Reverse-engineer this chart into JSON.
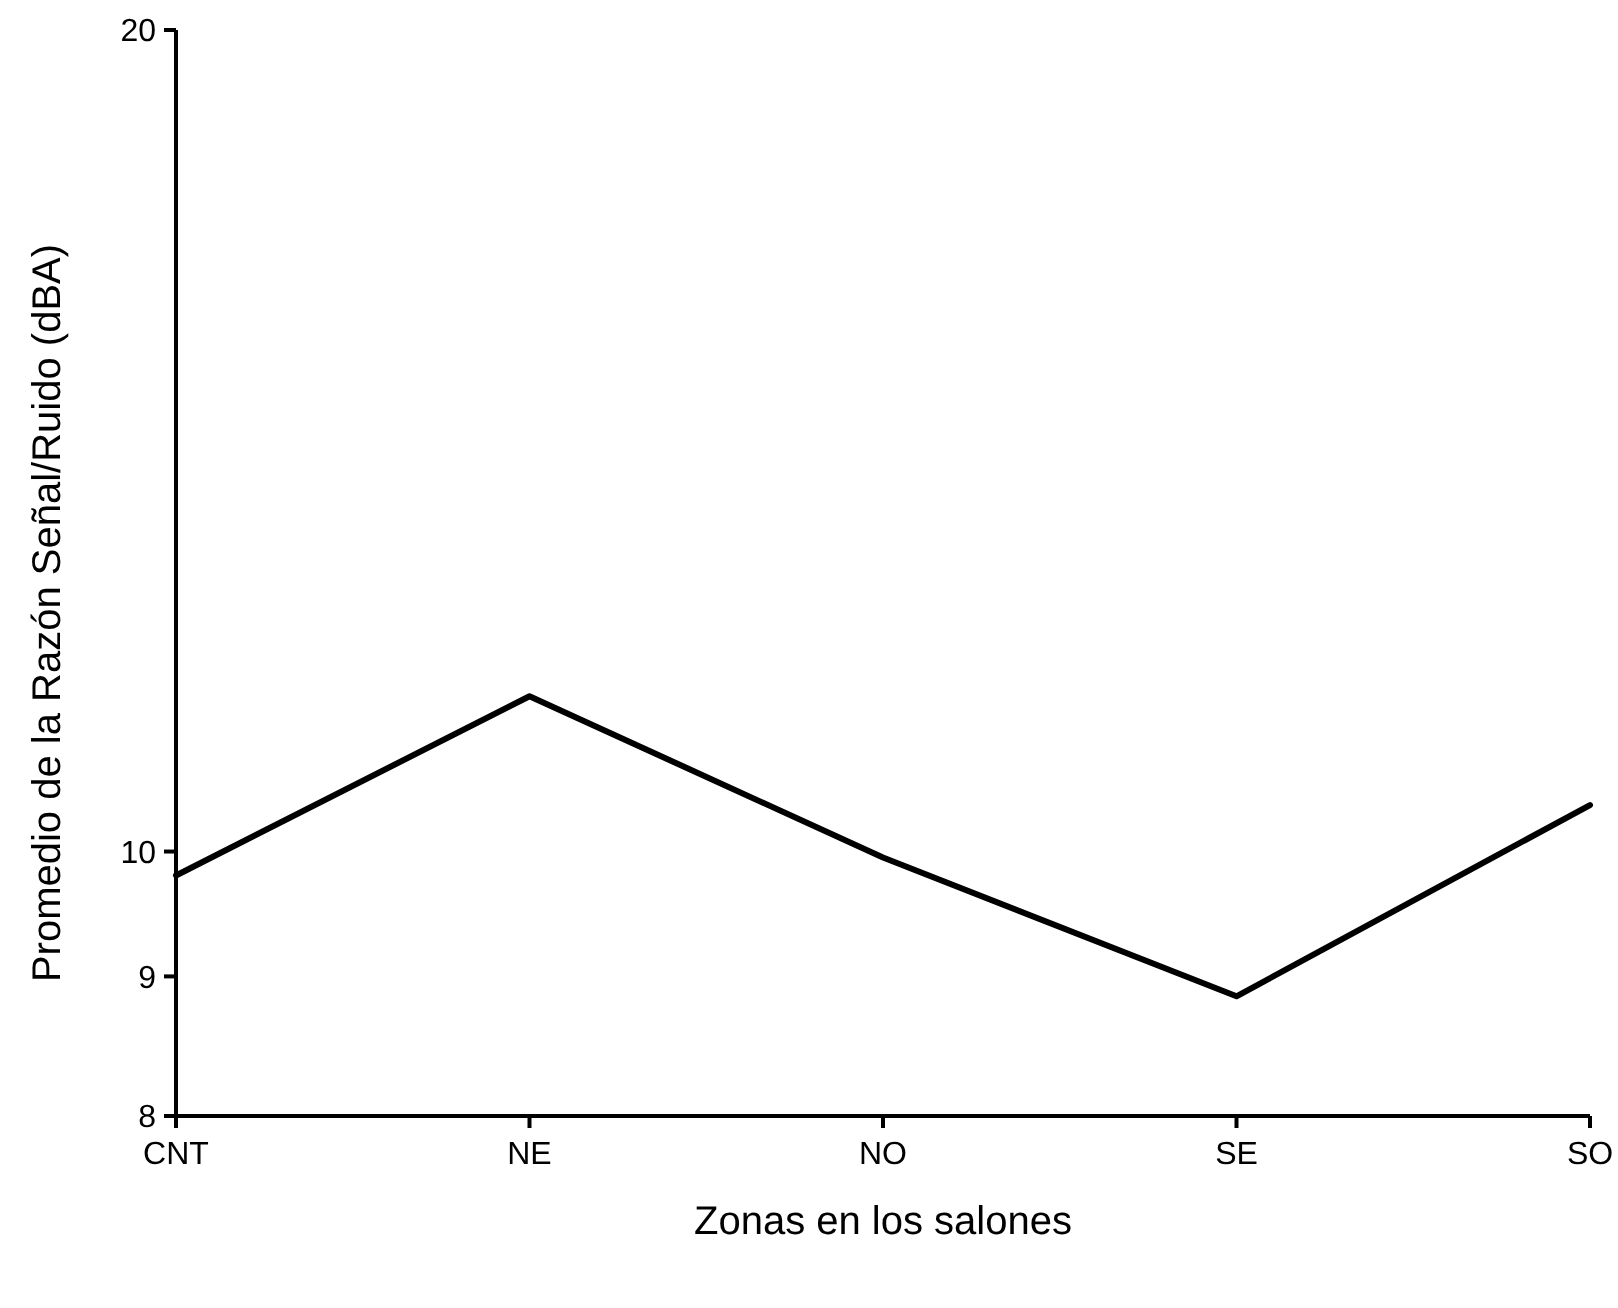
{
  "chart_data": {
    "type": "line",
    "xlabel": "Zonas en los salones",
    "ylabel": "Promedio de la Razón Señal/Ruido (dBA)",
    "categories": [
      "CNT",
      "NE",
      "NO",
      "SE",
      "SO"
    ],
    "series": [
      {
        "color": "#000000",
        "values": [
          9.8,
          11.4,
          9.95,
          8.85,
          10.4
        ]
      }
    ],
    "log": true,
    "ylim": [
      8,
      20
    ],
    "yticks": [
      8,
      9,
      10,
      20
    ],
    "grid": false,
    "marker": "none",
    "line_style": "solid"
  }
}
